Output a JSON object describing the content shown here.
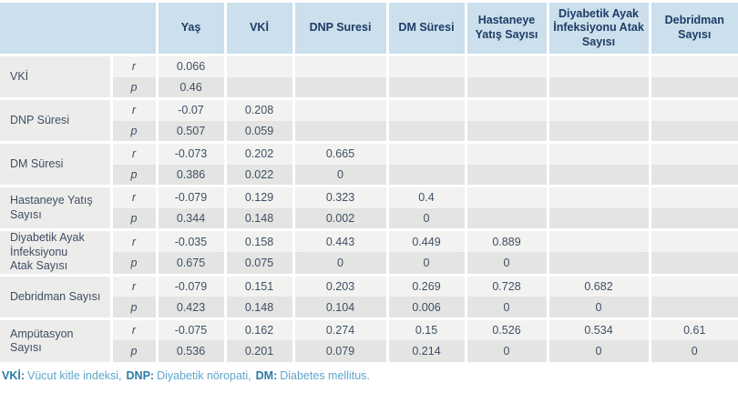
{
  "chart_data": {
    "type": "table",
    "columns": [
      "Yaş",
      "VKİ",
      "DNP Suresi",
      "DM Süresi",
      "Hastaneye\nYatış Sayısı",
      "Diyabetik Ayak\nİnfeksiyonu Atak\nSayısı",
      "Debridman\nSayısı"
    ],
    "stat_labels": {
      "r": "r",
      "p": "p"
    },
    "rows": [
      {
        "label": "VKİ",
        "r": [
          0.066
        ],
        "p": [
          0.46
        ]
      },
      {
        "label": "DNP Süresi",
        "r": [
          -0.07,
          0.208
        ],
        "p": [
          0.507,
          0.059
        ]
      },
      {
        "label": "DM Süresi",
        "r": [
          -0.073,
          0.202,
          0.665
        ],
        "p": [
          0.386,
          0.022,
          0
        ]
      },
      {
        "label": "Hastaneye Yatış\nSayısı",
        "r": [
          -0.079,
          0.129,
          0.323,
          0.4
        ],
        "p": [
          0.344,
          0.148,
          0.002,
          0
        ]
      },
      {
        "label": "Diyabetik Ayak\nİnfeksiyonu\nAtak Sayısı",
        "r": [
          -0.035,
          0.158,
          0.443,
          0.449,
          0.889
        ],
        "p": [
          0.675,
          0.075,
          0,
          0,
          0
        ]
      },
      {
        "label": "Debridman Sayısı",
        "r": [
          -0.079,
          0.151,
          0.203,
          0.269,
          0.728,
          0.682
        ],
        "p": [
          0.423,
          0.148,
          0.104,
          0.006,
          0,
          0
        ]
      },
      {
        "label": "Ampütasyon Sayısı",
        "r": [
          -0.075,
          0.162,
          0.274,
          0.15,
          0.526,
          0.534,
          0.61
        ],
        "p": [
          0.536,
          0.201,
          0.079,
          0.214,
          0,
          0,
          0
        ]
      }
    ]
  },
  "footnote": {
    "segments": [
      {
        "abbr": "VKİ:",
        "desc": "Vücut kitle indeksi,"
      },
      {
        "abbr": "DNP:",
        "desc": "Diyabetik nöropati,"
      },
      {
        "abbr": "DM:",
        "desc": "Diabetes mellitus."
      }
    ]
  },
  "colors": {
    "header_bg": "#cbdfec",
    "header_text": "#1f3c66",
    "row_r_bg": "#f2f3f1",
    "row_p_bg": "#e4e5e3",
    "label_bg": "#ececeb",
    "value_text": "#3f4e63",
    "footnote_abbr": "#2a7aa8",
    "footnote_desc": "#5ea6cb"
  }
}
